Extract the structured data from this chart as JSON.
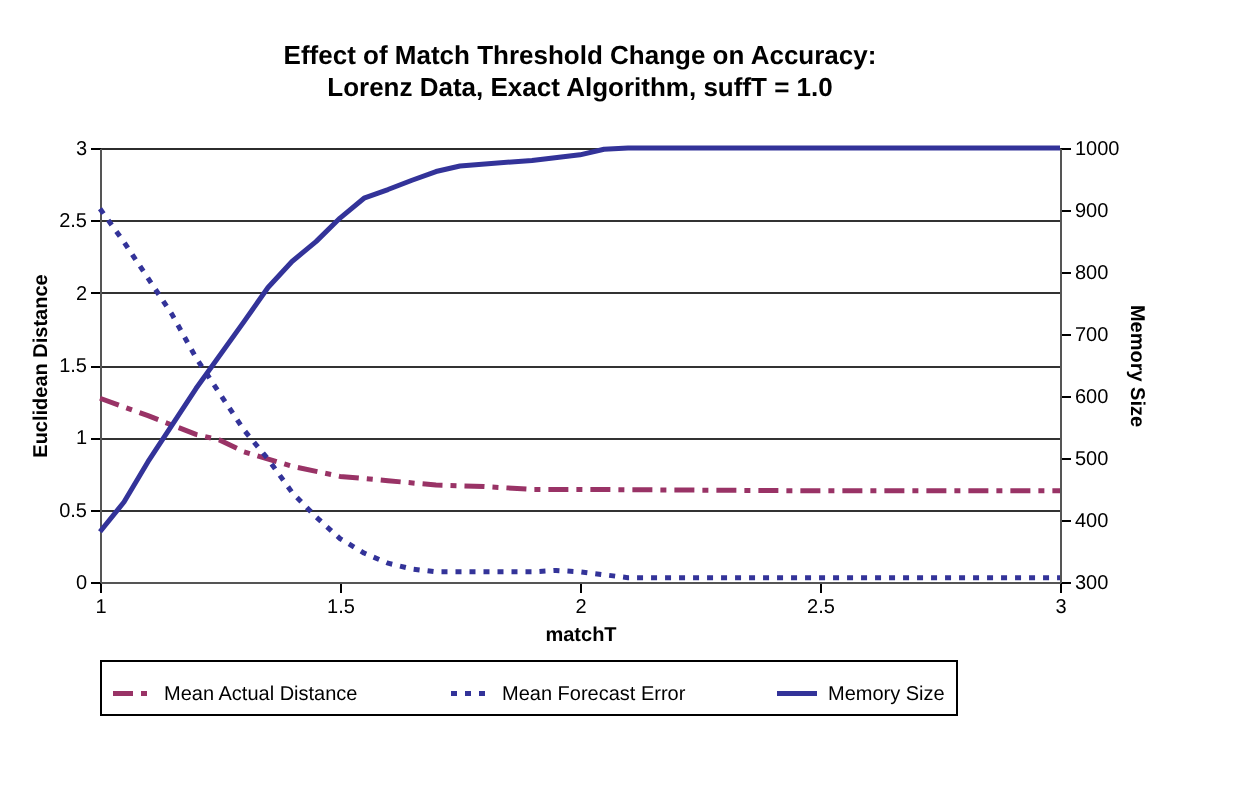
{
  "chart_data": {
    "type": "line",
    "title": "Effect of Match Threshold Change on Accuracy:",
    "subtitle": "Lorenz Data,  Exact Algorithm, suffT = 1.0",
    "xlabel": "matchT",
    "ylabel": "Euclidean Distance",
    "y2label": "Memory Size",
    "xlim": [
      1,
      3
    ],
    "xticks": [
      1,
      1.5,
      2,
      2.5,
      3
    ],
    "ylim": [
      0,
      3
    ],
    "yticks": [
      0,
      0.5,
      1,
      1.5,
      2,
      2.5,
      3
    ],
    "y2lim": [
      300,
      1000
    ],
    "y2ticks": [
      300,
      400,
      500,
      600,
      700,
      800,
      900,
      1000
    ],
    "grid": "y",
    "legend": "bottom",
    "marker": "none",
    "series": [
      {
        "name": "Mean Actual Distance",
        "color": "#993366",
        "line_style": "dashed",
        "x": [
          1,
          1.1,
          1.2,
          1.25,
          1.3,
          1.4,
          1.5,
          1.6,
          1.7,
          1.8,
          1.9,
          2,
          2.5,
          3
        ],
        "values": [
          1.27,
          1.15,
          1.02,
          0.98,
          0.9,
          0.8,
          0.73,
          0.7,
          0.67,
          0.66,
          0.64,
          0.64,
          0.63,
          0.63
        ]
      },
      {
        "name": "Mean Forecast Error",
        "color": "#333399",
        "line_style": "dotted",
        "x": [
          1,
          1.05,
          1.1,
          1.15,
          1.2,
          1.25,
          1.3,
          1.35,
          1.4,
          1.45,
          1.5,
          1.55,
          1.6,
          1.65,
          1.7,
          1.8,
          1.9,
          1.95,
          2,
          2.1,
          2.5,
          3
        ],
        "values": [
          2.58,
          2.35,
          2.1,
          1.85,
          1.55,
          1.3,
          1.05,
          0.85,
          0.62,
          0.45,
          0.3,
          0.2,
          0.13,
          0.09,
          0.07,
          0.07,
          0.07,
          0.08,
          0.07,
          0.03,
          0.03,
          0.03
        ]
      },
      {
        "name": "Memory Size",
        "color": "#333399",
        "line_style": "solid",
        "axis": "y2",
        "x": [
          1,
          1.05,
          1.1,
          1.2,
          1.3,
          1.35,
          1.4,
          1.45,
          1.5,
          1.55,
          1.6,
          1.65,
          1.7,
          1.75,
          1.9,
          2,
          2.05,
          2.1,
          3
        ],
        "values": [
          381,
          429,
          494,
          612,
          720,
          775,
          817,
          849,
          887,
          919,
          933,
          948,
          962,
          971,
          980,
          989,
          998,
          1000,
          1000
        ]
      }
    ]
  }
}
